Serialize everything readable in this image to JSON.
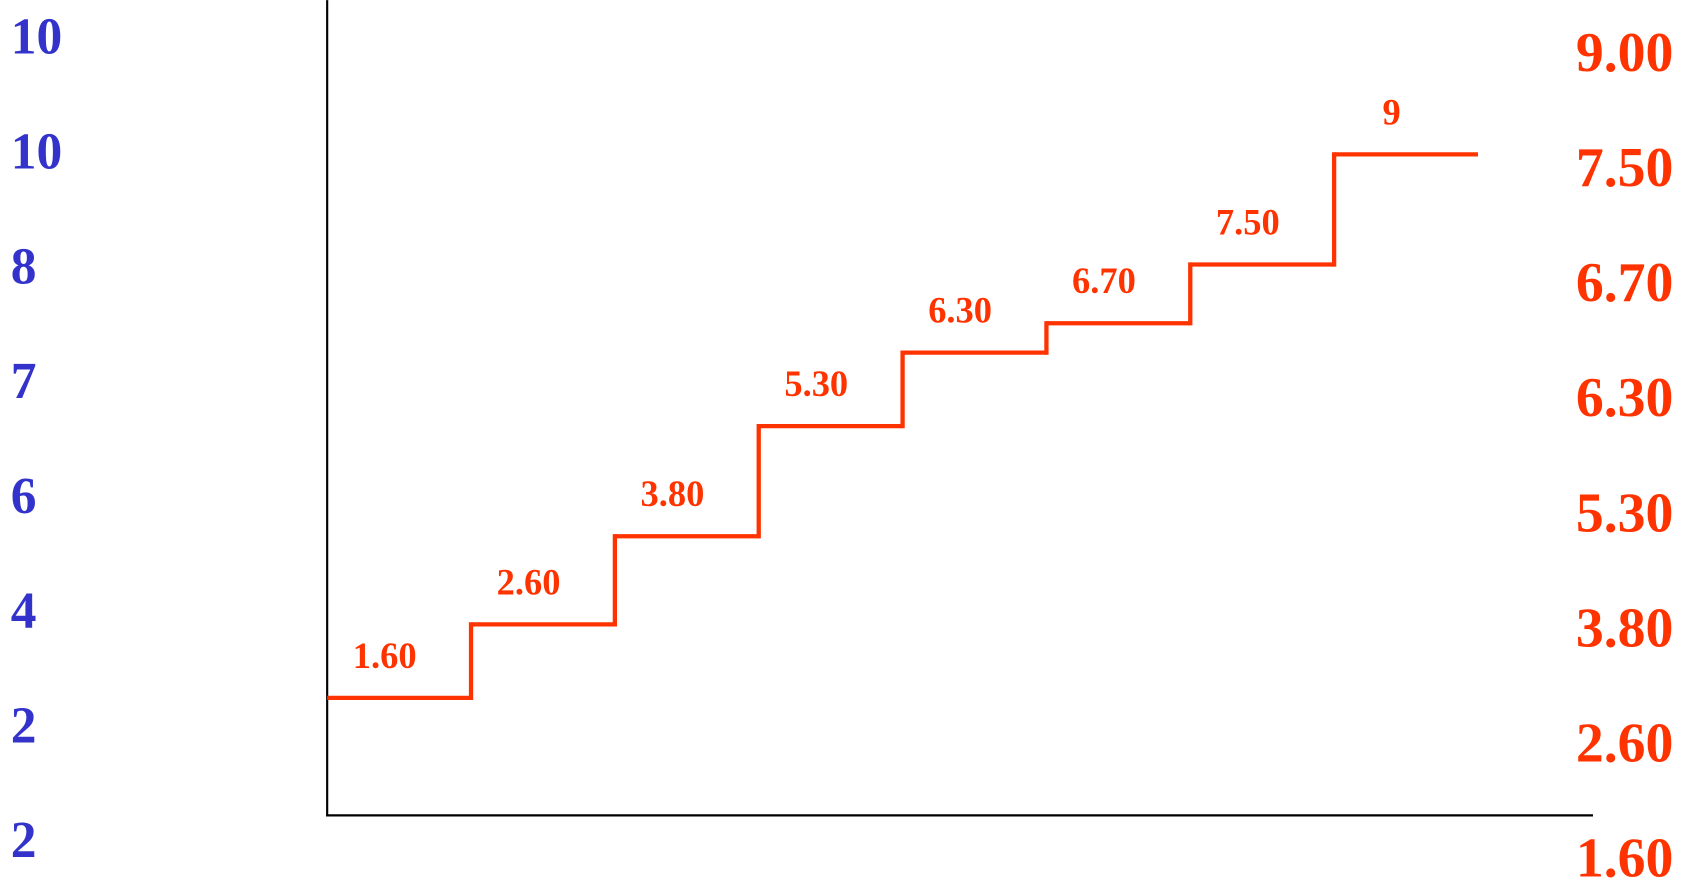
{
  "chart_data": {
    "type": "step",
    "left_labels": [
      "10",
      "10",
      "8",
      "7",
      "6",
      "4",
      "2",
      "2"
    ],
    "right_labels": [
      "9.00",
      "7.50",
      "6.70",
      "6.30",
      "5.30",
      "3.80",
      "2.60",
      "1.60"
    ],
    "values": [
      1.6,
      2.6,
      3.8,
      5.3,
      6.3,
      6.7,
      7.5,
      9
    ],
    "value_labels": [
      "1.60",
      "2.60",
      "3.80",
      "5.30",
      "6.30",
      "6.70",
      "7.50",
      "9"
    ],
    "color": "#ff3300",
    "left_color": "#3333cc",
    "ylim": [
      0,
      11.1
    ]
  }
}
